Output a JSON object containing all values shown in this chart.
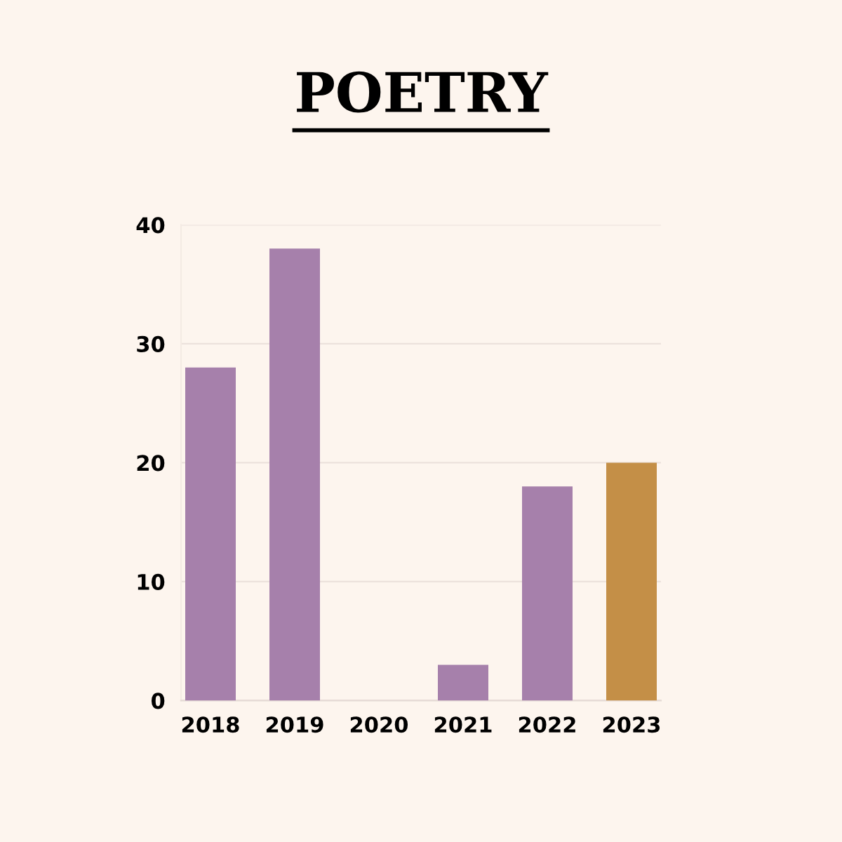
{
  "chart_data": {
    "type": "bar",
    "title": "POETRY",
    "categories": [
      "2018",
      "2019",
      "2020",
      "2021",
      "2022",
      "2023"
    ],
    "values": [
      28,
      38,
      0,
      3,
      18,
      20
    ],
    "colors": [
      "#a680ab",
      "#a680ab",
      "#a680ab",
      "#a680ab",
      "#a680ab",
      "#c48f47"
    ],
    "ylim": [
      0,
      40
    ],
    "yticks": [
      0,
      10,
      20,
      30,
      40
    ],
    "grid": "y"
  }
}
